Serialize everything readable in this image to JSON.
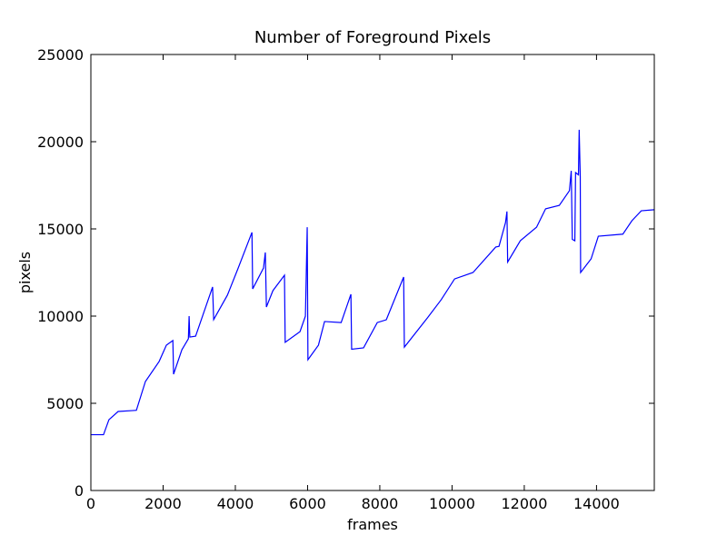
{
  "chart_data": {
    "type": "line",
    "title": "Number of Foreground Pixels",
    "xlabel": "frames",
    "ylabel": "pixels",
    "xlim": [
      0,
      15600
    ],
    "ylim": [
      0,
      25000
    ],
    "xticks": [
      0,
      2000,
      4000,
      6000,
      8000,
      10000,
      12000,
      14000
    ],
    "yticks": [
      0,
      5000,
      10000,
      15000,
      20000,
      25000
    ],
    "x": [
      0,
      350,
      500,
      755,
      1130,
      1260,
      1510,
      1890,
      2090,
      2270,
      2290,
      2520,
      2700,
      2720,
      2740,
      2900,
      3370,
      3400,
      3780,
      4080,
      4460,
      4480,
      4780,
      4830,
      4860,
      5040,
      5360,
      5380,
      5790,
      5940,
      5990,
      6010,
      6300,
      6470,
      6930,
      7200,
      7220,
      7550,
      7930,
      8180,
      8660,
      8680,
      9320,
      9700,
      10070,
      10580,
      11210,
      11300,
      11480,
      11520,
      11540,
      11890,
      12340,
      12590,
      12970,
      13250,
      13300,
      13330,
      13400,
      13420,
      13500,
      13520,
      13550,
      13560,
      13850,
      14050,
      14730,
      14980,
      15240,
      15600
    ],
    "series": [
      {
        "color": "#0000ff",
        "values": [
          3200,
          3200,
          4060,
          4530,
          4580,
          4600,
          6250,
          7400,
          8330,
          8600,
          6670,
          8070,
          8700,
          10000,
          8800,
          8850,
          11670,
          9800,
          11200,
          12760,
          14800,
          11560,
          12760,
          13650,
          10520,
          11460,
          12340,
          8500,
          9110,
          10000,
          15100,
          7500,
          8330,
          9690,
          9630,
          11250,
          8100,
          8180,
          9630,
          9790,
          12240,
          8220,
          9900,
          10940,
          12130,
          12500,
          13960,
          14000,
          15360,
          16000,
          13100,
          14320,
          15100,
          16150,
          16350,
          17190,
          18330,
          14400,
          14320,
          18230,
          18100,
          20680,
          18000,
          12500,
          13280,
          14580,
          14700,
          15470,
          16040,
          16100
        ]
      }
    ]
  }
}
